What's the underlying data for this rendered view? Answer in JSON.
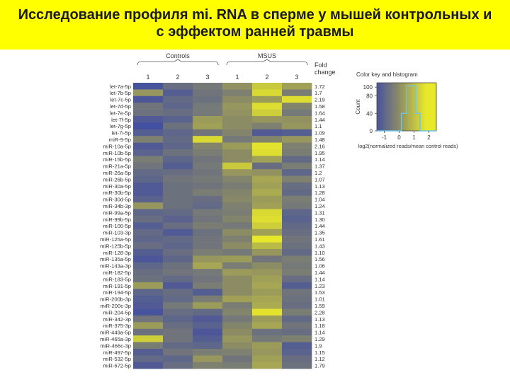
{
  "slide": {
    "title_line1": "Исследование профиля mi. RNA в сперме у мышей контрольных и",
    "title_line2": "с эффектом ранней травмы"
  },
  "colors": {
    "title_background": "#ffff00",
    "heatmap_low": "#3a47a8",
    "heatmap_mid": "#8c8c64",
    "heatmap_high": "#e8e82a"
  },
  "chart_data": {
    "type": "heatmap",
    "groups": [
      {
        "label": "Controls",
        "columns": [
          "1",
          "2",
          "3"
        ]
      },
      {
        "label": "MSUS",
        "columns": [
          "1",
          "2",
          "3"
        ]
      }
    ],
    "fold_change_header": [
      "Fold",
      "change"
    ],
    "rows": [
      "let-7a-5p",
      "let-7b-5p",
      "let-7c-5p",
      "let-7d-5p",
      "let-7e-5p",
      "let-7f-5p",
      "let-7g-5p",
      "let-7i-5p",
      "miR-9-5p",
      "miR-10a-5p",
      "miR-10b-5p",
      "miR-15b-5p",
      "miR-21a-5p",
      "miR-26a-5p",
      "miR-26b-5p",
      "miR-30a-5p",
      "miR-30b-5p",
      "miR-30d-5p",
      "miR-34b-3p",
      "miR-99a-5p",
      "miR-99b-5p",
      "miR-100-5p",
      "miR-103-3p",
      "miR-125a-5p",
      "miR-125b-5p",
      "miR-128-3p",
      "miR-135a-5p",
      "miR-143a-3p",
      "miR-182-5p",
      "miR-183-5p",
      "miR-191-5p",
      "miR-194-5p",
      "miR-200b-3p",
      "miR-200c-3p",
      "miR-204-5p",
      "miR-342-3p",
      "miR-375-3p",
      "miR-449a-5p",
      "miR-465a-3p",
      "miR-466c-3p",
      "miR-497-5p",
      "miR-532-5p",
      "miR-672-5p"
    ],
    "fold_change": [
      "1.72",
      "1.7",
      "2.19",
      "1.58",
      "1.64",
      "1.44",
      "1.1",
      "1.09",
      "1.48",
      "2.16",
      "1.95",
      "1.14",
      "1.37",
      "1.2",
      "1.07",
      "1.13",
      "1.28",
      "1.04",
      "1.24",
      "1.31",
      "1.30",
      "1.44",
      "1.35",
      "1.61",
      "1.43",
      "1.10",
      "1.56",
      "1.06",
      "1.44",
      "1.14",
      "1.23",
      "1.53",
      "1.01",
      "1.59",
      "2.28",
      "1.13",
      "1.18",
      "1.14",
      "1.29",
      "1.9",
      "1.15",
      "1.12",
      "1.79"
    ],
    "values": [
      [
        -1.5,
        -0.8,
        -0.5,
        0.1,
        1.2,
        0.4
      ],
      [
        0.2,
        -1.2,
        -0.6,
        -0.3,
        1.5,
        -0.4
      ],
      [
        -1.4,
        -0.9,
        -0.7,
        0.0,
        0.3,
        1.6
      ],
      [
        -0.6,
        -1.0,
        -0.5,
        0.2,
        1.6,
        -0.2
      ],
      [
        -0.7,
        -0.8,
        -0.5,
        0.1,
        1.3,
        -0.5
      ],
      [
        -1.3,
        -1.1,
        0.3,
        0.0,
        0.2,
        0.1
      ],
      [
        -1.6,
        -0.7,
        0.4,
        0.0,
        -0.3,
        0.2
      ],
      [
        -1.2,
        -1.0,
        -0.6,
        -0.2,
        -1.3,
        -1.2
      ],
      [
        -0.3,
        -0.9,
        1.5,
        -0.5,
        -0.2,
        0.2
      ],
      [
        -1.3,
        -1.0,
        -0.2,
        0.3,
        1.7,
        -0.3
      ],
      [
        -1.1,
        -0.7,
        -0.4,
        0.0,
        1.6,
        -0.4
      ],
      [
        -0.4,
        -1.0,
        -0.6,
        0.0,
        0.4,
        -0.9
      ],
      [
        -0.6,
        -1.2,
        -0.5,
        1.2,
        -0.8,
        -0.4
      ],
      [
        -0.9,
        -0.8,
        -0.6,
        0.2,
        0.1,
        -1.0
      ],
      [
        -1.0,
        -0.6,
        -0.5,
        -0.2,
        0.5,
        -0.3
      ],
      [
        -1.3,
        -0.7,
        -0.6,
        -0.4,
        0.4,
        -0.8
      ],
      [
        -1.3,
        -0.7,
        -0.4,
        -0.2,
        0.6,
        -0.9
      ],
      [
        -1.1,
        -0.7,
        -0.8,
        -0.1,
        0.3,
        -0.4
      ],
      [
        0.2,
        -0.7,
        -0.9,
        -0.3,
        0.4,
        -0.5
      ],
      [
        -1.0,
        -0.9,
        -0.5,
        -0.4,
        1.5,
        -1.0
      ],
      [
        -0.8,
        -1.1,
        -0.6,
        -0.2,
        1.6,
        -1.1
      ],
      [
        -1.2,
        -0.8,
        -0.4,
        -0.5,
        1.3,
        -0.9
      ],
      [
        -0.9,
        -1.3,
        -0.7,
        0.0,
        0.4,
        -0.8
      ],
      [
        -1.0,
        -0.9,
        -0.6,
        -0.3,
        1.8,
        -0.6
      ],
      [
        -0.8,
        -1.0,
        -0.6,
        0.0,
        0.9,
        -0.7
      ],
      [
        -1.2,
        -0.8,
        -0.4,
        -0.5,
        0.2,
        -0.9
      ],
      [
        -1.4,
        -1.0,
        0.2,
        0.3,
        -0.6,
        -0.4
      ],
      [
        -1.0,
        -0.7,
        0.5,
        -0.4,
        0.0,
        -0.5
      ],
      [
        -0.8,
        -0.6,
        -0.5,
        0.3,
        0.2,
        -0.4
      ],
      [
        -0.7,
        -0.9,
        -0.6,
        0.0,
        0.4,
        -0.8
      ],
      [
        0.3,
        -1.3,
        -0.4,
        0.0,
        0.5,
        -1.2
      ],
      [
        -1.0,
        -0.8,
        -1.2,
        0.0,
        0.3,
        -0.6
      ],
      [
        -1.2,
        -0.9,
        -0.4,
        0.4,
        0.5,
        -0.7
      ],
      [
        -1.3,
        -0.5,
        0.3,
        -0.4,
        0.6,
        -0.8
      ],
      [
        -1.5,
        -0.8,
        -0.9,
        -0.2,
        1.7,
        -0.4
      ],
      [
        -0.6,
        -1.0,
        -1.3,
        -0.5,
        0.3,
        -0.9
      ],
      [
        0.3,
        -0.8,
        -1.1,
        -0.2,
        0.5,
        -0.6
      ],
      [
        -0.7,
        -0.6,
        -1.4,
        0.0,
        -0.7,
        -0.8
      ],
      [
        1.3,
        -0.6,
        -1.2,
        0.2,
        -0.5,
        -0.3
      ],
      [
        -0.4,
        -0.9,
        -1.0,
        0.0,
        0.3,
        -1.2
      ],
      [
        -1.2,
        -0.6,
        -0.4,
        -0.3,
        0.2,
        -1.1
      ],
      [
        -0.9,
        -1.0,
        0.2,
        -0.6,
        0.4,
        -0.8
      ],
      [
        -1.3,
        -0.8,
        -0.3,
        -0.4,
        0.5,
        -0.7
      ]
    ],
    "color_key": {
      "title": "Color key and histogram",
      "ylabel": "Count",
      "xlabel": "log2(normalized reads/mean control reads)",
      "yticks": [
        "0",
        "40",
        "80",
        "100"
      ],
      "xticks": [
        "-1",
        "0",
        "1",
        "2"
      ],
      "xlim": [
        -1.5,
        2.5
      ],
      "ylim": [
        0,
        110
      ],
      "histogram": [
        [
          -1.5,
          0
        ],
        [
          -1.1,
          0
        ],
        [
          -1.1,
          0
        ],
        [
          0.15,
          0
        ],
        [
          0.15,
          40
        ],
        [
          0.5,
          40
        ],
        [
          0.5,
          103
        ],
        [
          1.1,
          103
        ],
        [
          1.1,
          40
        ],
        [
          1.4,
          40
        ],
        [
          1.4,
          0
        ],
        [
          2.5,
          0
        ]
      ]
    }
  }
}
